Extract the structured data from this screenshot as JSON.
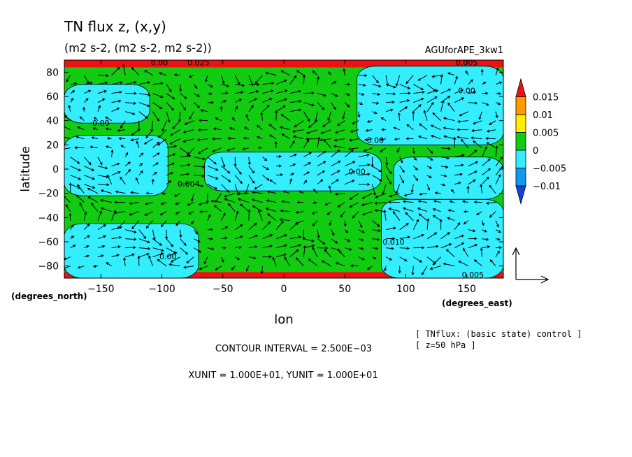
{
  "chart_data": {
    "type": "heatmap",
    "title": "TN flux z, (x,y)",
    "subtitle": "(m2 s-2, (m2 s-2, m2 s-2))",
    "dataset_label": "AGUforAPE_3kw1",
    "xlabel": "lon",
    "ylabel": "latitude",
    "x_unit_label": "(degrees_east)",
    "y_unit_label": "(degrees_north)",
    "xlim": [
      -180,
      180
    ],
    "ylim": [
      -90,
      90
    ],
    "x_ticks": [
      -150,
      -100,
      -50,
      0,
      50,
      100,
      150
    ],
    "y_ticks": [
      -80,
      -60,
      -40,
      -20,
      0,
      20,
      40,
      60,
      80
    ],
    "x_tick_labels": [
      "−150",
      "−100",
      "−50",
      "0",
      "50",
      "100",
      "150"
    ],
    "y_tick_labels": [
      "−80",
      "−60",
      "−40",
      "−20",
      "0",
      "20",
      "40",
      "60",
      "80"
    ],
    "colorbar": {
      "levels": [
        -0.015,
        -0.01,
        -0.005,
        0,
        0.005,
        0.01,
        0.015
      ],
      "tick_labels": [
        "0.015",
        "0.01",
        "0.005",
        "0",
        "−0.005",
        "−0.01"
      ],
      "band_colors": [
        "#ee1111",
        "#ff9900",
        "#ffee00",
        "#11cc11",
        "#33eeff",
        "#1199ee",
        "#1144dd"
      ]
    },
    "contour_labels": [
      {
        "text": "0.00",
        "lon": -150,
        "lat": 38
      },
      {
        "text": "0.00",
        "lon": 75,
        "lat": 24
      },
      {
        "text": "0.00",
        "lon": 150,
        "lat": 65
      },
      {
        "text": "0.004",
        "lon": -78,
        "lat": -12
      },
      {
        "text": "0.00",
        "lon": 60,
        "lat": -2
      },
      {
        "text": "0.010",
        "lon": 90,
        "lat": -60
      },
      {
        "text": "0.00",
        "lon": -95,
        "lat": -72
      },
      {
        "text": "0.00",
        "lon": -102,
        "lat": 88
      },
      {
        "text": "0.025",
        "lon": -70,
        "lat": 88
      },
      {
        "text": "0.005",
        "lon": 150,
        "lat": 88
      },
      {
        "text": "0.005",
        "lon": 155,
        "lat": -87
      }
    ],
    "negative_regions": [
      {
        "name": "north-polar-cap",
        "lon": [
          -180,
          180
        ],
        "lat": [
          84,
          90
        ]
      },
      {
        "name": "south-polar-cap",
        "lon": [
          -180,
          180
        ],
        "lat": [
          -90,
          -85
        ]
      },
      {
        "name": "nw-tongue",
        "lon": [
          -180,
          -110
        ],
        "lat": [
          38,
          70
        ]
      },
      {
        "name": "ne-block",
        "lon": [
          60,
          180
        ],
        "lat": [
          20,
          85
        ]
      },
      {
        "name": "equatorial-west",
        "lon": [
          -180,
          -95
        ],
        "lat": [
          -22,
          28
        ]
      },
      {
        "name": "equatorial-center",
        "lon": [
          -65,
          80
        ],
        "lat": [
          -18,
          14
        ]
      },
      {
        "name": "equatorial-east",
        "lon": [
          90,
          180
        ],
        "lat": [
          -25,
          10
        ]
      },
      {
        "name": "sw-band",
        "lon": [
          -180,
          -70
        ],
        "lat": [
          -90,
          -45
        ]
      },
      {
        "name": "se-band",
        "lon": [
          80,
          180
        ],
        "lat": [
          -90,
          -25
        ]
      }
    ],
    "vector_units": {
      "xunit": 10.0,
      "yunit": 10.0
    }
  },
  "annotations": {
    "contour_interval": "CONTOUR INTERVAL = 2.500E−03",
    "units_line": "XUNIT = 1.000E+01, YUNIT = 1.000E+01",
    "note_line1": "[ TNflux: (basic state) control ]",
    "note_line2": "[ z=50 hPa ]"
  },
  "colors": {
    "positive_fill": "#11cc11",
    "negative_fill": "#33eeff",
    "polar_edge": "#ee1111"
  }
}
